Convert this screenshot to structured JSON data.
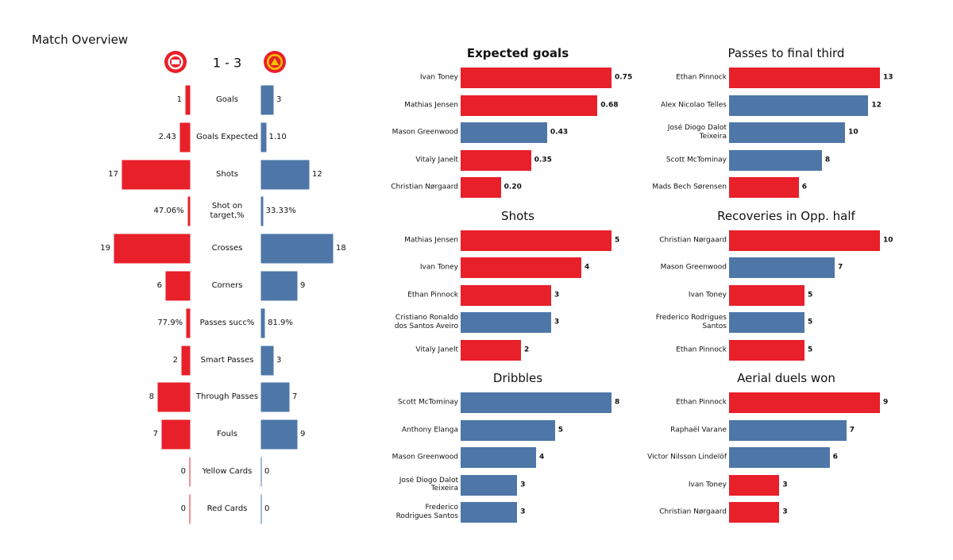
{
  "chart_data": [
    {
      "type": "diverging-bar",
      "title": "Match Overview",
      "score": "1 - 3",
      "categories": [
        "Goals",
        "Goals Expected",
        "Shots",
        "Shot on\ntarget,%",
        "Crosses",
        "Corners",
        "Passes succ%",
        "Smart Passes",
        "Through Passes",
        "Fouls",
        "Yellow Cards",
        "Red Cards"
      ],
      "series": [
        {
          "color": "#e8202a",
          "values": [
            1,
            2.43,
            17,
            47.06,
            19,
            6,
            77.9,
            2,
            8,
            7,
            0,
            0
          ],
          "value_labels": [
            "1",
            "2.43",
            "17",
            "47.06%",
            "19",
            "6",
            "77.9%",
            "2",
            "8",
            "7",
            "0",
            "0"
          ]
        },
        {
          "color": "#4e77a8",
          "values": [
            3,
            1.1,
            12,
            33.33,
            18,
            9,
            81.9,
            3,
            7,
            9,
            0,
            0
          ],
          "value_labels": [
            "3",
            "1.10",
            "12",
            "33.33%",
            "18",
            "9",
            "81.9%",
            "3",
            "7",
            "9",
            "0",
            "0"
          ]
        }
      ]
    },
    {
      "type": "hbar",
      "title": "Expected goals",
      "categories": [
        "Ivan Toney",
        "Mathias Jensen",
        "Mason Greenwood",
        "Vitaly Janelt",
        "Christian Nørgaard"
      ],
      "values": [
        0.75,
        0.68,
        0.43,
        0.35,
        0.2
      ],
      "value_labels": [
        "0.75",
        "0.68",
        "0.43",
        "0.35",
        "0.20"
      ],
      "colors": [
        "#e8202a",
        "#e8202a",
        "#4e77a8",
        "#e8202a",
        "#e8202a"
      ]
    },
    {
      "type": "hbar",
      "title": "Passes to final third",
      "categories": [
        "Ethan Pinnock",
        "Alex Nicolao Telles",
        "José Diogo Dalot\nTeixeira",
        "Scott McTominay",
        "Mads Bech Sørensen"
      ],
      "values": [
        13,
        12,
        10,
        8,
        6
      ],
      "colors": [
        "#e8202a",
        "#4e77a8",
        "#4e77a8",
        "#4e77a8",
        "#e8202a"
      ]
    },
    {
      "type": "hbar",
      "title": "Shots",
      "categories": [
        "Mathias Jensen",
        "Ivan Toney",
        "Ethan Pinnock",
        "Cristiano Ronaldo\ndos Santos Aveiro",
        "Vitaly Janelt"
      ],
      "values": [
        5,
        4,
        3,
        3,
        2
      ],
      "colors": [
        "#e8202a",
        "#e8202a",
        "#e8202a",
        "#4e77a8",
        "#e8202a"
      ]
    },
    {
      "type": "hbar",
      "title": "Recoveries in Opp. half",
      "categories": [
        "Christian Nørgaard",
        "Mason Greenwood",
        "Ivan Toney",
        "Frederico Rodrigues\nSantos",
        "Ethan Pinnock"
      ],
      "values": [
        10,
        7,
        5,
        5,
        5
      ],
      "colors": [
        "#e8202a",
        "#4e77a8",
        "#e8202a",
        "#4e77a8",
        "#e8202a"
      ]
    },
    {
      "type": "hbar",
      "title": "Dribbles",
      "categories": [
        "Scott McTominay",
        "Anthony Elanga",
        "Mason Greenwood",
        "José Diogo Dalot\nTeixeira",
        "Frederico\nRodrigues Santos"
      ],
      "values": [
        8,
        5,
        4,
        3,
        3
      ],
      "colors": [
        "#4e77a8",
        "#4e77a8",
        "#4e77a8",
        "#4e77a8",
        "#4e77a8"
      ]
    },
    {
      "type": "hbar",
      "title": "Aerial duels won",
      "categories": [
        "Ethan Pinnock",
        "Raphaël Varane",
        "Victor Nilsson Lindelöf",
        "Ivan Toney",
        "Christian Nørgaard"
      ],
      "values": [
        9,
        7,
        6,
        3,
        3
      ],
      "colors": [
        "#e8202a",
        "#4e77a8",
        "#4e77a8",
        "#e8202a",
        "#e8202a"
      ]
    }
  ]
}
